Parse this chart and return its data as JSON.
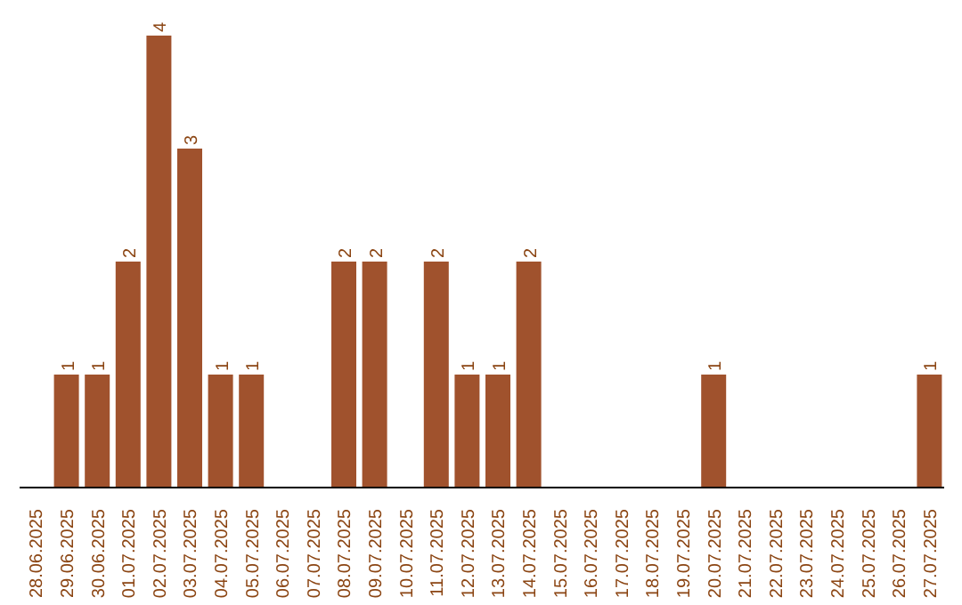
{
  "chart_data": {
    "type": "bar",
    "categories": [
      "28.06.2025",
      "29.06.2025",
      "30.06.2025",
      "01.07.2025",
      "02.07.2025",
      "03.07.2025",
      "04.07.2025",
      "05.07.2025",
      "06.07.2025",
      "07.07.2025",
      "08.07.2025",
      "09.07.2025",
      "10.07.2025",
      "11.07.2025",
      "12.07.2025",
      "13.07.2025",
      "14.07.2025",
      "15.07.2025",
      "16.07.2025",
      "17.07.2025",
      "18.07.2025",
      "19.07.2025",
      "20.07.2025",
      "21.07.2025",
      "22.07.2025",
      "23.07.2025",
      "24.07.2025",
      "25.07.2025",
      "26.07.2025",
      "27.07.2025"
    ],
    "values": [
      0,
      1,
      1,
      2,
      4,
      3,
      1,
      1,
      0,
      0,
      2,
      2,
      0,
      2,
      1,
      1,
      2,
      0,
      0,
      0,
      0,
      0,
      1,
      0,
      0,
      0,
      0,
      0,
      0,
      1
    ],
    "value_labels": [
      null,
      "1",
      "1",
      "2",
      "4",
      "3",
      "1",
      "1",
      null,
      null,
      "2",
      "2",
      null,
      "2",
      "1",
      "1",
      "2",
      null,
      null,
      null,
      null,
      null,
      "1",
      null,
      null,
      null,
      null,
      null,
      null,
      "1"
    ],
    "color": "#a0522d",
    "grid": false
  }
}
